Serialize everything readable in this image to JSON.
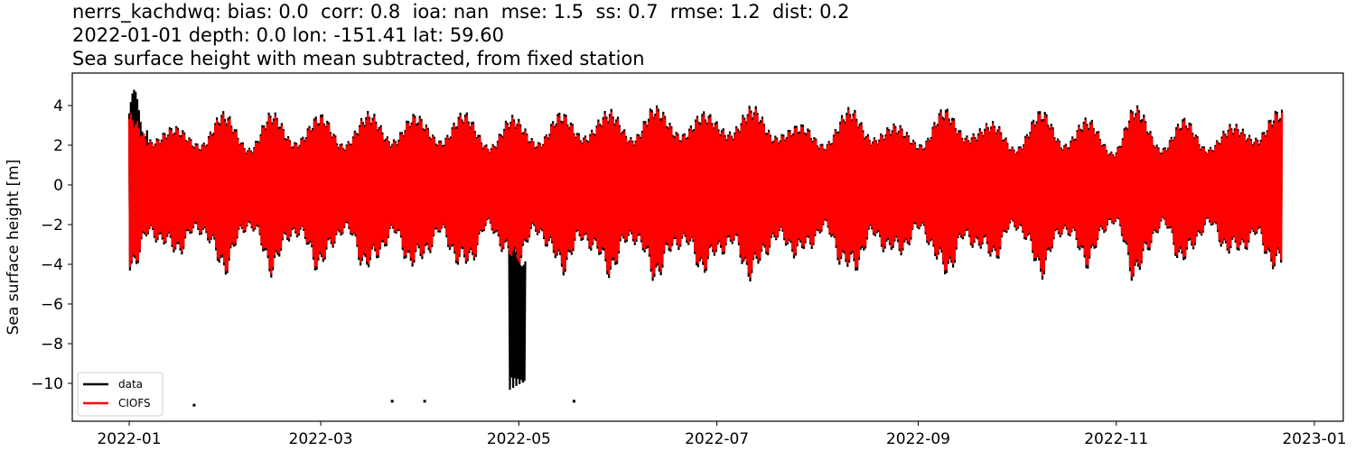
{
  "chart_data": {
    "type": "line",
    "title_lines": [
      "nerrs_kachdwq: bias: 0.0  corr: 0.8  ioa: nan  mse: 1.5  ss: 0.7  rmse: 1.2  dist: 0.2",
      "2022-01-01 depth: 0.0 lon: -151.41 lat: 59.60",
      "Sea surface height with mean subtracted, from fixed station"
    ],
    "stats": {
      "station": "nerrs_kachdwq",
      "bias": 0.0,
      "corr": 0.8,
      "ioa": "nan",
      "mse": 1.5,
      "ss": 0.7,
      "rmse": 1.2,
      "dist": 0.2,
      "date": "2022-01-01",
      "depth": 0.0,
      "lon": -151.41,
      "lat": 59.6
    },
    "xlabel": "",
    "ylabel": "Sea surface height [m]",
    "ylim": [
      -11.8,
      5.6
    ],
    "xlim": [
      "2021-12-15",
      "2023-01-05"
    ],
    "x_ticks": [
      "2022-01",
      "2022-03",
      "2022-05",
      "2022-07",
      "2022-09",
      "2022-11",
      "2023-01"
    ],
    "y_ticks": [
      4,
      2,
      0,
      -2,
      -4,
      -6,
      -8,
      -10
    ],
    "y_tick_labels": [
      "4",
      "2",
      "0",
      "−2",
      "−4",
      "−6",
      "−8",
      "−10"
    ],
    "grid": false,
    "legend_position": "lower left",
    "series": [
      {
        "name": "data",
        "color": "#000000",
        "x_range": [
          "2022-01-01",
          "2022-12-22"
        ],
        "notes": "Observed sea surface height; spikes to ~4.8 m in early Jan 2022, outliers down to ~-10.4 m around 2022-04-28 to 2022-05-03, isolated points near -11.1 (2022-01-21), -10.9 (2022-03-23), -10.9 (2022-04-02), -10.9 (2022-05-18)"
      },
      {
        "name": "CIOFS",
        "color": "#ff0000",
        "x_range": [
          "2022-01-01",
          "2022-12-22"
        ],
        "notes": "Model sea surface height; semidiurnal tides with spring-neap envelope ~2 to 4 m amplitude"
      }
    ],
    "envelope_days_high": [
      [
        0,
        3.6
      ],
      [
        7,
        2.2
      ],
      [
        14,
        2.9
      ],
      [
        22,
        2.0
      ],
      [
        29,
        3.6
      ],
      [
        37,
        1.8
      ],
      [
        44,
        3.6
      ],
      [
        51,
        2.1
      ],
      [
        59,
        3.5
      ],
      [
        66,
        2.0
      ],
      [
        74,
        3.6
      ],
      [
        81,
        2.2
      ],
      [
        88,
        3.5
      ],
      [
        96,
        2.2
      ],
      [
        103,
        3.6
      ],
      [
        111,
        1.9
      ],
      [
        118,
        3.4
      ],
      [
        126,
        2.1
      ],
      [
        133,
        3.6
      ],
      [
        140,
        2.4
      ],
      [
        148,
        3.7
      ],
      [
        155,
        2.3
      ],
      [
        162,
        3.9
      ],
      [
        170,
        2.5
      ],
      [
        177,
        3.6
      ],
      [
        185,
        2.6
      ],
      [
        192,
        3.9
      ],
      [
        199,
        2.4
      ],
      [
        207,
        3.0
      ],
      [
        214,
        2.0
      ],
      [
        222,
        3.8
      ],
      [
        229,
        2.3
      ],
      [
        236,
        3.0
      ],
      [
        244,
        2.0
      ],
      [
        251,
        3.8
      ],
      [
        258,
        2.4
      ],
      [
        266,
        3.1
      ],
      [
        273,
        1.8
      ],
      [
        281,
        3.7
      ],
      [
        288,
        2.0
      ],
      [
        295,
        3.3
      ],
      [
        303,
        1.6
      ],
      [
        310,
        3.9
      ],
      [
        318,
        1.8
      ],
      [
        325,
        3.3
      ],
      [
        332,
        1.8
      ],
      [
        340,
        3.0
      ],
      [
        347,
        2.3
      ],
      [
        354,
        3.7
      ]
    ],
    "outliers": [
      {
        "date": "2022-01-21",
        "value": -11.1
      },
      {
        "date": "2022-03-23",
        "value": -10.9
      },
      {
        "date": "2022-04-02",
        "value": -10.9
      },
      {
        "date": "2022-05-18",
        "value": -10.9
      }
    ],
    "data_spike_early_jan": {
      "start": "2022-01-01",
      "end": "2022-01-06",
      "max": 4.8
    },
    "data_negative_burst": {
      "start": "2022-04-28",
      "end": "2022-05-03",
      "min": -10.4,
      "top": -3.6
    }
  },
  "legend": {
    "entries": [
      {
        "label": "data",
        "color": "#000000"
      },
      {
        "label": "CIOFS",
        "color": "#ff0000"
      }
    ]
  }
}
